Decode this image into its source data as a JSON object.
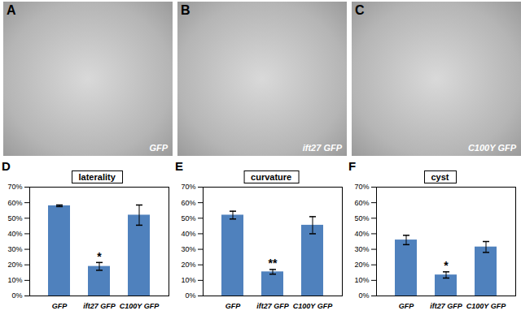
{
  "photo_panels": [
    {
      "label": "A",
      "caption": "GFP"
    },
    {
      "label": "B",
      "caption": "ift27 GFP"
    },
    {
      "label": "C",
      "caption": "C100Y GFP"
    }
  ],
  "chart_data": [
    {
      "type": "bar",
      "panel_label": "D",
      "title": "laterality",
      "categories": [
        "GFP",
        "ift27 GFP",
        "C100Y GFP"
      ],
      "values": [
        58,
        19,
        52
      ],
      "error": [
        0.5,
        2.5,
        6.5
      ],
      "color": "#4f81bd",
      "ylim": [
        0,
        70
      ],
      "yticks": [
        {
          "value": 0,
          "label": "0%"
        },
        {
          "value": 10,
          "label": "10%"
        },
        {
          "value": 20,
          "label": "20%"
        },
        {
          "value": 30,
          "label": "30%"
        },
        {
          "value": 40,
          "label": "40%"
        },
        {
          "value": 50,
          "label": "50%"
        },
        {
          "value": 60,
          "label": "60%"
        },
        {
          "value": 70,
          "label": "70%"
        }
      ],
      "grid": false,
      "annotations": [
        {
          "text": "*",
          "category": "ift27 GFP"
        }
      ]
    },
    {
      "type": "bar",
      "panel_label": "E",
      "title": "curvature",
      "categories": [
        "GFP",
        "ift27 GFP",
        "C100Y GFP"
      ],
      "values": [
        52,
        15.5,
        45.5
      ],
      "error": [
        2.5,
        1.5,
        5.5
      ],
      "color": "#4f81bd",
      "ylim": [
        0,
        70
      ],
      "yticks": [
        {
          "value": 0,
          "label": "0%"
        },
        {
          "value": 10,
          "label": "10%"
        },
        {
          "value": 20,
          "label": "20%"
        },
        {
          "value": 30,
          "label": "30%"
        },
        {
          "value": 40,
          "label": "40%"
        },
        {
          "value": 50,
          "label": "50%"
        },
        {
          "value": 60,
          "label": "60%"
        },
        {
          "value": 70,
          "label": "70%"
        }
      ],
      "grid": false,
      "annotations": [
        {
          "text": "**",
          "category": "ift27 GFP"
        }
      ]
    },
    {
      "type": "bar",
      "panel_label": "F",
      "title": "cyst",
      "categories": [
        "GFP",
        "ift27 GFP",
        "C100Y GFP"
      ],
      "values": [
        36,
        13.5,
        31.5
      ],
      "error": [
        3,
        2,
        3.5
      ],
      "color": "#4f81bd",
      "ylim": [
        0,
        70
      ],
      "yticks": [
        {
          "value": 0,
          "label": "0%"
        },
        {
          "value": 10,
          "label": "10%"
        },
        {
          "value": 20,
          "label": "20%"
        },
        {
          "value": 30,
          "label": "30%"
        },
        {
          "value": 40,
          "label": "40%"
        },
        {
          "value": 50,
          "label": "50%"
        },
        {
          "value": 60,
          "label": "60%"
        },
        {
          "value": 70,
          "label": "70%"
        }
      ],
      "grid": false,
      "annotations": [
        {
          "text": "*",
          "category": "ift27 GFP"
        }
      ]
    }
  ]
}
